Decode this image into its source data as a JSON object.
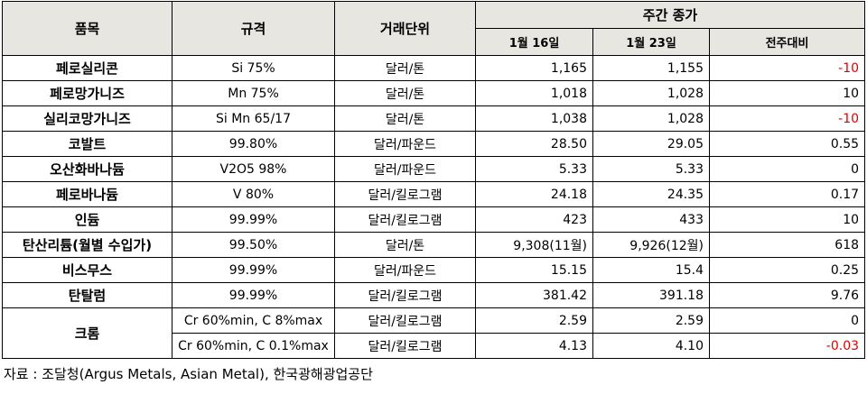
{
  "header": {
    "item": "품목",
    "spec": "규격",
    "unit": "거래단위",
    "group": "주간 종가",
    "date1": "1월 16일",
    "date2": "1월 23일",
    "change": "전주대비"
  },
  "table": {
    "rows": [
      {
        "item": "페로실리콘",
        "lines": [
          [
            "Si 75%",
            "달러/톤",
            "1,165",
            "1,155",
            "-10"
          ]
        ]
      },
      {
        "item": "페로망가니즈",
        "lines": [
          [
            "Mn 75%",
            "달러/톤",
            "1,018",
            "1,028",
            "10"
          ]
        ]
      },
      {
        "item": "실리코망가니즈",
        "lines": [
          [
            "Si Mn 65/17",
            "달러/톤",
            "1,038",
            "1,028",
            "-10"
          ]
        ]
      },
      {
        "item": "코발트",
        "lines": [
          [
            "99.80%",
            "달러/파운드",
            "28.50",
            "29.05",
            "0.55"
          ]
        ]
      },
      {
        "item": "오산화바나듐",
        "lines": [
          [
            "V2O5 98%",
            "달러/파운드",
            "5.33",
            "5.33",
            "0"
          ]
        ]
      },
      {
        "item": "페로바나듐",
        "lines": [
          [
            "V 80%",
            "달러/킬로그램",
            "24.18",
            "24.35",
            "0.17"
          ]
        ]
      },
      {
        "item": "인듐",
        "lines": [
          [
            "99.99%",
            "달러/킬로그램",
            "423",
            "433",
            "10"
          ]
        ]
      },
      {
        "item": "탄산리튬(월별 수입가)",
        "lines": [
          [
            "99.50%",
            "달러/톤",
            "9,308(11월)",
            "9,926(12월)",
            "618"
          ]
        ]
      },
      {
        "item": "비스무스",
        "lines": [
          [
            "99.99%",
            "달러/파운드",
            "15.15",
            "15.4",
            "0.25"
          ]
        ]
      },
      {
        "item": "탄탈럼",
        "lines": [
          [
            "99.99%",
            "달러/킬로그램",
            "381.42",
            "391.18",
            "9.76"
          ]
        ]
      },
      {
        "item": "크롬",
        "lines": [
          [
            "Cr 60%min, C 8%max",
            "달러/킬로그램",
            "2.59",
            "2.59",
            "0"
          ],
          [
            "Cr 60%min, C 0.1%max",
            "달러/킬로그램",
            "4.13",
            "4.10",
            "-0.03"
          ]
        ]
      }
    ]
  },
  "footer": {
    "source": "자료 : 조달청(Argus Metals, Asian Metal), 한국광해광업공단"
  }
}
